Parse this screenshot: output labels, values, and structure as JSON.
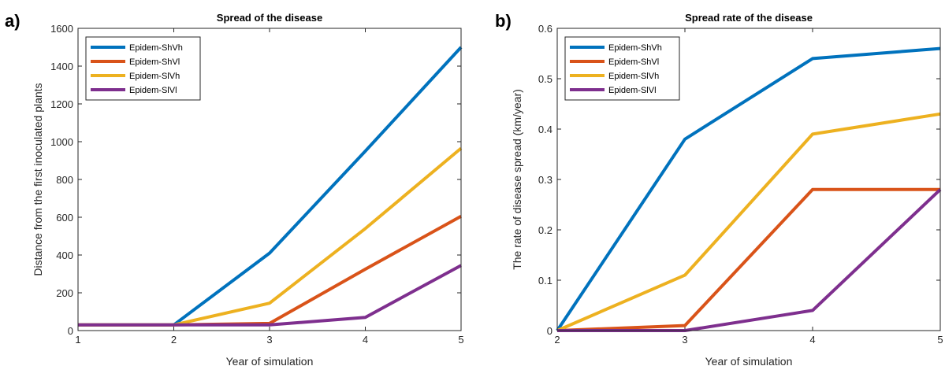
{
  "figure": {
    "panel_labels": [
      "a)",
      "b)"
    ]
  },
  "chart_data": [
    {
      "type": "line",
      "title": "Spread of the disease",
      "xlabel": "Year of simulation",
      "ylabel": "Distance from the first inoculated plants",
      "xlim": [
        1,
        5
      ],
      "ylim": [
        0,
        1600
      ],
      "xticks": [
        1,
        2,
        3,
        4,
        5
      ],
      "yticks": [
        0,
        200,
        400,
        600,
        800,
        1000,
        1200,
        1400,
        1600
      ],
      "grid": false,
      "legend_position": "top-left",
      "x": [
        1,
        2,
        3,
        4,
        5
      ],
      "series": [
        {
          "name": "Epidem-ShVh",
          "color": "#0072BD",
          "values": [
            30,
            30,
            410,
            950,
            1500
          ]
        },
        {
          "name": "Epidem-ShVl",
          "color": "#D95319",
          "values": [
            30,
            30,
            38,
            325,
            605
          ]
        },
        {
          "name": "Epidem-SlVh",
          "color": "#EDB120",
          "values": [
            30,
            30,
            145,
            540,
            965
          ]
        },
        {
          "name": "Epidem-SlVl",
          "color": "#7E2F8E",
          "values": [
            30,
            30,
            30,
            70,
            345
          ]
        }
      ]
    },
    {
      "type": "line",
      "title": "Spread rate of the disease",
      "xlabel": "Year of simulation",
      "ylabel": "The rate of disease spread (km/year)",
      "xlim": [
        2,
        5
      ],
      "ylim": [
        0,
        0.6
      ],
      "xticks": [
        2,
        3,
        4,
        5
      ],
      "yticks": [
        0,
        0.1,
        0.2,
        0.3,
        0.4,
        0.5,
        0.6
      ],
      "grid": false,
      "legend_position": "top-left",
      "x": [
        2,
        3,
        4,
        5
      ],
      "series": [
        {
          "name": "Epidem-ShVh",
          "color": "#0072BD",
          "values": [
            0,
            0.38,
            0.54,
            0.56
          ]
        },
        {
          "name": "Epidem-ShVl",
          "color": "#D95319",
          "values": [
            0,
            0.01,
            0.28,
            0.28
          ]
        },
        {
          "name": "Epidem-SlVh",
          "color": "#EDB120",
          "values": [
            0,
            0.11,
            0.39,
            0.43
          ]
        },
        {
          "name": "Epidem-SlVl",
          "color": "#7E2F8E",
          "values": [
            0,
            0,
            0.04,
            0.28
          ]
        }
      ]
    }
  ]
}
